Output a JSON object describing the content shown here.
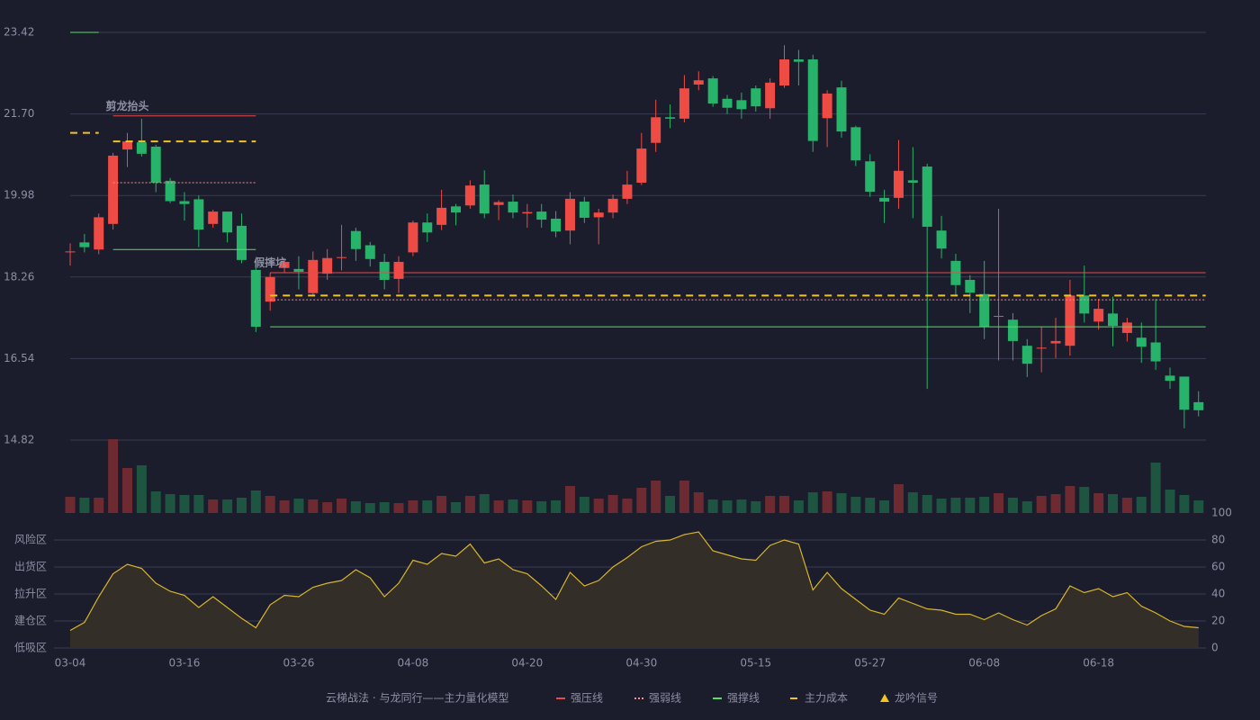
{
  "chart_data": [
    {
      "type": "candlestick",
      "categories": [
        "03-04",
        null,
        null,
        null,
        null,
        null,
        null,
        null,
        "03-16",
        null,
        null,
        null,
        null,
        null,
        null,
        null,
        "03-26",
        null,
        null,
        null,
        null,
        null,
        null,
        null,
        "04-08",
        null,
        null,
        null,
        null,
        null,
        null,
        null,
        "04-20",
        null,
        null,
        null,
        null,
        null,
        null,
        null,
        "04-30",
        null,
        null,
        null,
        null,
        null,
        null,
        null,
        "05-15",
        null,
        null,
        null,
        null,
        null,
        null,
        null,
        "05-27",
        null,
        null,
        null,
        null,
        null,
        null,
        null,
        "06-08",
        null,
        null,
        null,
        null,
        null,
        null,
        null,
        "06-18",
        null,
        null,
        null,
        null,
        null,
        null,
        null
      ],
      "open": [
        18.78,
        18.99,
        18.84,
        19.38,
        20.95,
        21.1,
        21.01,
        20.29,
        19.86,
        19.9,
        19.38,
        19.64,
        19.34,
        18.41,
        17.74,
        18.45,
        18.43,
        17.92,
        18.33,
        18.66,
        19.23,
        18.93,
        18.58,
        18.22,
        18.78,
        19.41,
        19.36,
        19.75,
        19.77,
        20.21,
        19.78,
        19.85,
        19.6,
        19.64,
        19.49,
        19.24,
        19.85,
        19.52,
        19.62,
        19.91,
        20.25,
        21.09,
        21.63,
        21.6,
        22.32,
        22.45,
        22.02,
        21.99,
        22.24,
        21.82,
        22.3,
        22.85,
        22.85,
        21.61,
        22.26,
        21.42,
        20.7,
        19.93,
        19.93,
        20.3,
        20.59,
        19.24,
        18.6,
        18.2,
        17.9,
        17.42,
        17.36,
        16.81,
        16.75,
        16.86,
        16.81,
        17.87,
        17.32,
        17.49,
        17.08,
        16.98,
        16.88,
        16.18,
        16.16,
        15.62
      ],
      "high": [
        18.97,
        19.17,
        19.6,
        20.88,
        21.3,
        21.6,
        21.05,
        20.35,
        20.05,
        19.98,
        19.68,
        19.64,
        19.6,
        18.6,
        18.35,
        18.66,
        18.7,
        18.8,
        18.85,
        19.36,
        19.3,
        19.0,
        18.75,
        18.7,
        19.45,
        19.6,
        20.1,
        19.8,
        20.3,
        20.51,
        19.88,
        20.0,
        19.8,
        19.8,
        19.65,
        20.05,
        19.95,
        19.7,
        20.0,
        20.5,
        21.3,
        22.0,
        21.9,
        22.52,
        22.6,
        22.5,
        22.1,
        22.15,
        22.3,
        22.45,
        23.15,
        23.05,
        22.95,
        22.2,
        22.4,
        21.45,
        20.85,
        20.1,
        21.15,
        21.0,
        20.65,
        19.55,
        18.75,
        18.3,
        18.6,
        19.7,
        17.5,
        16.95,
        17.2,
        17.4,
        18.2,
        18.5,
        17.8,
        17.85,
        17.4,
        17.3,
        17.8,
        16.35,
        16.16,
        15.85
      ],
      "low": [
        18.5,
        18.78,
        18.74,
        19.26,
        20.58,
        20.8,
        20.05,
        19.82,
        19.45,
        18.89,
        19.3,
        18.99,
        18.55,
        17.1,
        17.55,
        18.36,
        18.0,
        17.85,
        18.2,
        18.4,
        18.6,
        18.48,
        18.0,
        17.92,
        18.7,
        19.0,
        19.25,
        19.35,
        19.7,
        19.5,
        19.46,
        19.5,
        19.3,
        19.3,
        19.1,
        18.95,
        19.4,
        18.95,
        19.5,
        19.8,
        20.2,
        20.9,
        21.4,
        21.52,
        22.2,
        21.85,
        21.7,
        21.6,
        21.75,
        21.6,
        22.25,
        22.3,
        20.9,
        21.0,
        21.2,
        20.6,
        19.95,
        19.4,
        19.7,
        19.5,
        15.9,
        18.65,
        17.85,
        17.5,
        16.95,
        16.5,
        16.5,
        16.15,
        16.25,
        16.55,
        16.6,
        17.3,
        17.15,
        16.8,
        16.9,
        16.45,
        16.3,
        15.9,
        15.07,
        15.32
      ],
      "close": [
        18.8,
        18.89,
        19.52,
        20.82,
        21.12,
        20.86,
        20.25,
        19.86,
        19.8,
        19.26,
        19.64,
        19.2,
        18.62,
        17.21,
        18.26,
        18.58,
        18.37,
        18.62,
        18.66,
        18.68,
        18.85,
        18.64,
        18.2,
        18.58,
        19.41,
        19.2,
        19.72,
        19.62,
        20.19,
        19.6,
        19.84,
        19.62,
        19.63,
        19.47,
        19.22,
        19.91,
        19.51,
        19.62,
        19.91,
        20.21,
        20.97,
        21.63,
        21.6,
        22.24,
        22.41,
        21.92,
        21.83,
        21.8,
        21.86,
        22.36,
        22.85,
        22.8,
        21.13,
        22.13,
        21.33,
        20.72,
        20.06,
        19.85,
        20.5,
        20.25,
        19.32,
        18.86,
        18.09,
        17.93,
        17.21,
        17.44,
        16.91,
        16.43,
        16.77,
        16.91,
        17.87,
        17.49,
        17.59,
        17.23,
        17.3,
        16.79,
        16.48,
        16.07,
        15.46,
        15.45
      ],
      "up_color": "#ee4b45",
      "down_color": "#27b46a",
      "ylim": [
        14.82,
        23.42
      ],
      "yticks": [
        14.82,
        16.54,
        18.26,
        19.98,
        {
          "value": 21.7,
          "label": "21.70"
        },
        23.42
      ],
      "grid": true,
      "levels": [
        {
          "kind": 3,
          "start": 0,
          "end": 2,
          "value": 21.3
        },
        {
          "kind": 2,
          "start": 0,
          "end": 2,
          "value": 23.42
        },
        {
          "kind": 0,
          "start": 3,
          "end": 13,
          "value": 21.66
        },
        {
          "kind": 3,
          "start": 3,
          "end": 13,
          "value": 21.12
        },
        {
          "kind": 1,
          "start": 3,
          "end": 13,
          "value": 20.25
        },
        {
          "kind": 2,
          "start": 3,
          "end": 13,
          "value": 18.84
        },
        {
          "kind": 0,
          "start": 14,
          "end": 79.5,
          "value": 18.35
        },
        {
          "kind": 3,
          "start": 14,
          "end": 79.5,
          "value": 17.87
        },
        {
          "kind": 1,
          "start": 14,
          "end": 79.5,
          "value": 17.78
        },
        {
          "kind": 2,
          "start": 14,
          "end": 79.5,
          "value": 17.21
        }
      ],
      "annotations": [
        {
          "text": "剪龙抬头",
          "index": 4,
          "value": 21.85,
          "color": "#8fd0ff"
        },
        {
          "text": "假摔坑",
          "index": 14,
          "value": 18.55,
          "color": "#ff8a8a"
        }
      ],
      "legend_title": "云梯战法 · 与龙同行——主力量化模型",
      "legend": [
        {
          "name": "强压线",
          "color": "#e84a4a",
          "style": "solid"
        },
        {
          "name": "强弱线",
          "color": "#f49090",
          "style": "dotted"
        },
        {
          "name": "强撑线",
          "color": "#55e060",
          "style": "solid"
        },
        {
          "name": "主力成本",
          "color": "#f2c420",
          "style": "dashed"
        },
        {
          "name": "龙吟信号",
          "color": "#f2c420",
          "style": "triangle"
        }
      ]
    },
    {
      "type": "bar",
      "values": [
        18,
        17,
        17,
        82,
        50,
        53,
        24,
        21,
        20,
        20,
        15,
        15,
        17,
        25,
        19,
        14,
        16,
        15,
        12,
        16,
        13,
        11,
        12,
        11,
        14,
        14,
        19,
        12,
        19,
        21,
        14,
        15,
        14,
        13,
        14,
        30,
        18,
        16,
        20,
        16,
        28,
        36,
        19,
        36,
        23,
        15,
        14,
        15,
        13,
        19,
        19,
        14,
        23,
        24,
        22,
        18,
        17,
        14,
        32,
        23,
        20,
        16,
        17,
        17,
        18,
        22,
        17,
        13,
        19,
        21,
        30,
        29,
        22,
        21,
        17,
        18,
        56,
        26,
        20,
        14
      ],
      "up_color": "#6e2a31",
      "down_color": "#1e5540",
      "ylim": [
        0,
        82
      ]
    },
    {
      "type": "line",
      "values": [
        13,
        19,
        38,
        55,
        62,
        59,
        48,
        42,
        39,
        30,
        38,
        30,
        22,
        15,
        32,
        39,
        38,
        45,
        48,
        50,
        58,
        52,
        38,
        48,
        65,
        62,
        70,
        68,
        77,
        63,
        66,
        58,
        55,
        46,
        36,
        56,
        46,
        50,
        60,
        67,
        75,
        79,
        80,
        84,
        86,
        72,
        69,
        66,
        65,
        76,
        80,
        77,
        43,
        56,
        44,
        36,
        28,
        25,
        37,
        33,
        29,
        28,
        25,
        25,
        21,
        26,
        21,
        17,
        24,
        29,
        46,
        41,
        44,
        38,
        41,
        31,
        26,
        20,
        16,
        15
      ],
      "color": "#d8b52a",
      "fill": "#332e28",
      "ylim": [
        0,
        100
      ],
      "yticks": [
        0,
        20,
        40,
        60,
        80,
        100
      ],
      "ytick_colors": [
        "#e84a4a",
        "#f0a040",
        "#4a8cff",
        "#e040e0",
        "#f0a020",
        "#4ddc5a"
      ],
      "zones": [
        {
          "value": 0,
          "label": "低吸区"
        },
        {
          "value": 20,
          "label": "建仓区"
        },
        {
          "value": 40,
          "label": "拉升区"
        },
        {
          "value": 60,
          "label": "出货区"
        },
        {
          "value": 80,
          "label": "风险区"
        }
      ],
      "zone_colors": [
        "#e84a4a",
        "#e8584a",
        "#4a8cff",
        "#e040e0",
        "#f0a020"
      ],
      "grid": true
    }
  ]
}
